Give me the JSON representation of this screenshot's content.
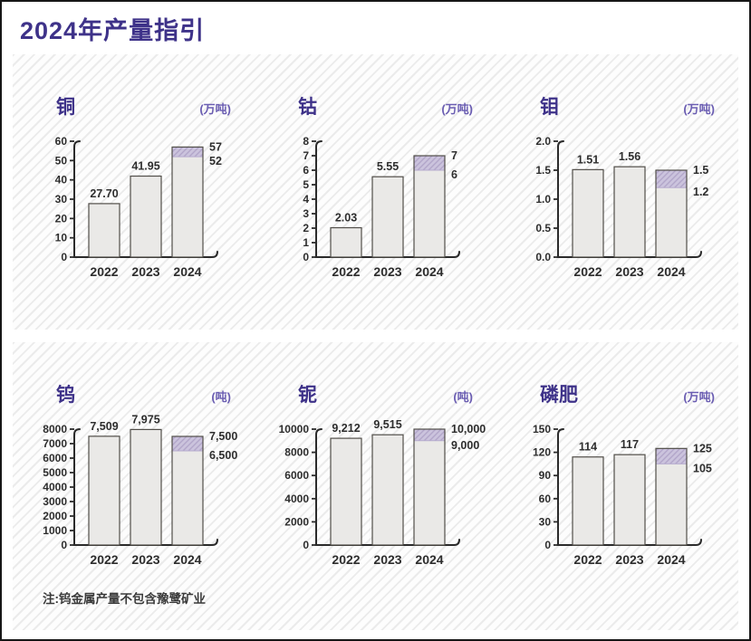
{
  "header": {
    "title": "2024年产量指引"
  },
  "footnote": "注:钨金属产量不包含豫鹭矿业",
  "colors": {
    "title_purple": "#3e3289",
    "unit_purple": "#6a5db2",
    "bar_fill": "#eae9e7",
    "bar_stroke": "#514e49",
    "range_fill": "#cbc3dd",
    "range_hatch_line": "#b2a6c9",
    "axis": "#2b2b2b",
    "panel_hatch_line": "#ebebeb"
  },
  "chart_data": [
    {
      "type": "bar",
      "name": "铜",
      "unit": "(万吨)",
      "categories": [
        "2022",
        "2023",
        "2024"
      ],
      "values": [
        27.7,
        41.95,
        {
          "low": 52,
          "high": 57
        }
      ],
      "labels": [
        "27.70",
        "41.95",
        {
          "low": "52",
          "high": "57"
        }
      ],
      "ylim": [
        0,
        60
      ],
      "yticks": [
        0,
        10,
        20,
        30,
        40,
        50,
        60
      ],
      "ytick_labels": [
        "0",
        "10",
        "20",
        "30",
        "40",
        "50",
        "60"
      ]
    },
    {
      "type": "bar",
      "name": "钴",
      "unit": "(万吨)",
      "categories": [
        "2022",
        "2023",
        "2024"
      ],
      "values": [
        2.03,
        5.55,
        {
          "low": 6,
          "high": 7
        }
      ],
      "labels": [
        "2.03",
        "5.55",
        {
          "low": "6",
          "high": "7"
        }
      ],
      "ylim": [
        0,
        8
      ],
      "yticks": [
        0,
        1,
        2,
        3,
        4,
        5,
        6,
        7,
        8
      ],
      "ytick_labels": [
        "0",
        "1",
        "2",
        "3",
        "4",
        "5",
        "6",
        "7",
        "8"
      ]
    },
    {
      "type": "bar",
      "name": "钼",
      "unit": "(万吨)",
      "categories": [
        "2022",
        "2023",
        "2024"
      ],
      "values": [
        1.51,
        1.56,
        {
          "low": 1.2,
          "high": 1.5
        }
      ],
      "labels": [
        "1.51",
        "1.56",
        {
          "low": "1.2",
          "high": "1.5"
        }
      ],
      "ylim": [
        0,
        2
      ],
      "yticks": [
        0,
        0.5,
        1.0,
        1.5,
        2.0
      ],
      "ytick_labels": [
        "0.0",
        "0.5",
        "1.0",
        "1.5",
        "2.0"
      ]
    },
    {
      "type": "bar",
      "name": "钨",
      "unit": "(吨)",
      "categories": [
        "2022",
        "2023",
        "2024"
      ],
      "values": [
        7509,
        7975,
        {
          "low": 6500,
          "high": 7500
        }
      ],
      "labels": [
        "7,509",
        "7,975",
        {
          "low": "6,500",
          "high": "7,500"
        }
      ],
      "ylim": [
        0,
        8000
      ],
      "yticks": [
        0,
        1000,
        2000,
        3000,
        4000,
        5000,
        6000,
        7000,
        8000
      ],
      "ytick_labels": [
        "0",
        "1000",
        "2000",
        "3000",
        "4000",
        "5000",
        "6000",
        "7000",
        "8000"
      ]
    },
    {
      "type": "bar",
      "name": "铌",
      "unit": "(吨)",
      "categories": [
        "2022",
        "2023",
        "2024"
      ],
      "values": [
        9212,
        9515,
        {
          "low": 9000,
          "high": 10000
        }
      ],
      "labels": [
        "9,212",
        "9,515",
        {
          "low": "9,000",
          "high": "10,000"
        }
      ],
      "ylim": [
        0,
        10000
      ],
      "yticks": [
        0,
        2000,
        4000,
        6000,
        8000,
        10000
      ],
      "ytick_labels": [
        "0",
        "2000",
        "4000",
        "6000",
        "8000",
        "10000"
      ]
    },
    {
      "type": "bar",
      "name": "磷肥",
      "unit": "(万吨)",
      "categories": [
        "2022",
        "2023",
        "2024"
      ],
      "values": [
        114,
        117,
        {
          "low": 105,
          "high": 125
        }
      ],
      "labels": [
        "114",
        "117",
        {
          "low": "105",
          "high": "125"
        }
      ],
      "ylim": [
        0,
        150
      ],
      "yticks": [
        0,
        30,
        60,
        90,
        120,
        150
      ],
      "ytick_labels": [
        "0",
        "30",
        "60",
        "90",
        "120",
        "150"
      ]
    }
  ]
}
